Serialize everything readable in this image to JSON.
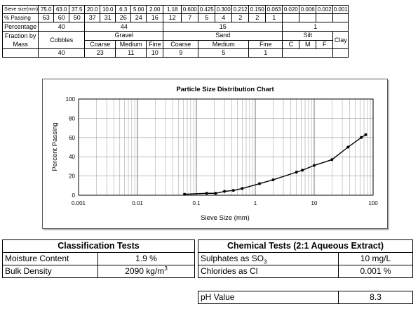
{
  "sieve_table": {
    "sieve_size_label": "Sieve size(mm)",
    "passing_label": "% Passing",
    "sizes": [
      "75.0",
      "63.0",
      "37.5",
      "20.0",
      "10.0",
      "6.3",
      "5.00",
      "2.00",
      "1.18",
      "0.600",
      "0.425",
      "0.300",
      "0.212",
      "0.150",
      "0.063",
      "0.020",
      "0.006",
      "0.002",
      "0.001"
    ],
    "passing": [
      "63",
      "60",
      "50",
      "37",
      "31",
      "26",
      "24",
      "16",
      "12",
      "7",
      "5",
      "4",
      "2",
      "2",
      "1",
      "",
      "",
      "",
      ""
    ],
    "percentage_label": "Percentage",
    "percentages": {
      "cobbles": "40",
      "gravel": "44",
      "sand": "15",
      "silt_clay": "1"
    },
    "fraction_label_1": "Fraction by",
    "fraction_label_2": "Mass",
    "cobbles_label": "Cobbles",
    "gravel_label": "Gravel",
    "sand_label": "Sand",
    "silt_label": "Silt",
    "clay_label": "Clay",
    "coarse_label": "Coarse",
    "medium_label": "Medium",
    "fine_label": "Fine",
    "c_label": "C",
    "m_label": "M",
    "f_label": "F",
    "fractions": {
      "cobbles": "40",
      "gravel_coarse": "23",
      "gravel_medium": "11",
      "gravel_fine": "10",
      "sand_coarse": "9",
      "sand_medium": "5",
      "sand_fine": "1"
    }
  },
  "chart_data": {
    "type": "line",
    "title": "Particle Size Distribution Chart",
    "xlabel": "Sieve Size (mm)",
    "ylabel": "Percent Passing",
    "x_scale": "log",
    "xlim": [
      0.001,
      100
    ],
    "ylim": [
      0,
      100
    ],
    "x_ticks": [
      "0.001",
      "0.01",
      "0.1",
      "1",
      "10",
      "100"
    ],
    "y_ticks": [
      "0",
      "20",
      "40",
      "60",
      "80",
      "100"
    ],
    "grid": true,
    "series": [
      {
        "x": [
          0.063,
          0.15,
          0.212,
          0.3,
          0.425,
          0.6,
          1.18,
          2.0,
          5.0,
          6.3,
          10.0,
          20.0,
          37.5,
          63.0,
          75.0
        ],
        "y": [
          1,
          2,
          2,
          4,
          5,
          7,
          12,
          16,
          24,
          26,
          31,
          37,
          50,
          60,
          63
        ]
      }
    ]
  },
  "classification": {
    "title": "Classification Tests",
    "moisture_label": "Moisture Content",
    "moisture_value": "1.9 %",
    "bulk_label": "Bulk Density",
    "bulk_value": "2090",
    "bulk_unit": "kg/m",
    "bulk_unit_sup": "3"
  },
  "chemical": {
    "title": "Chemical Tests (2:1 Aqueous Extract)",
    "sulphates_label": "Sulphates as SO",
    "sulphates_sub": "3",
    "sulphates_value": "10 mg/L",
    "chlorides_label": "Chlorides as Cl",
    "chlorides_value": "0.001 %"
  },
  "ph": {
    "label": "pH Value",
    "value": "8.3"
  }
}
